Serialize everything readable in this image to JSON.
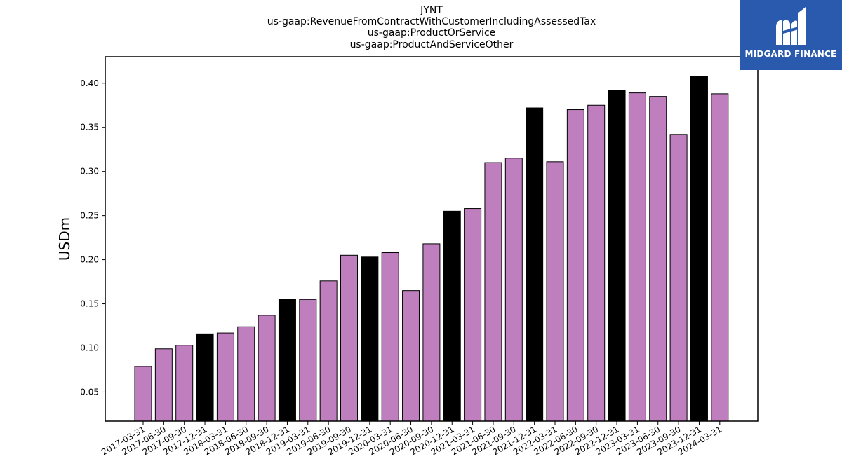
{
  "chart_data": {
    "type": "bar",
    "title": [
      "JYNT",
      "us-gaap:RevenueFromContractWithCustomerIncludingAssessedTax",
      "us-gaap:ProductOrService",
      "us-gaap:ProductAndServiceOther"
    ],
    "xlabel": "",
    "ylabel": "USDm",
    "ylim": [
      0.017,
      0.43
    ],
    "yticks": [
      0.05,
      0.1,
      0.15,
      0.2,
      0.25,
      0.3,
      0.35,
      0.4
    ],
    "ytick_labels": [
      "0.05",
      "0.10",
      "0.15",
      "0.20",
      "0.25",
      "0.30",
      "0.35",
      "0.40"
    ],
    "grid": false,
    "colors": {
      "quarter": "#bf7fbf",
      "year_end": "#000000",
      "edge": "#000000"
    },
    "categories": [
      "2017-03-31",
      "2017-06-30",
      "2017-09-30",
      "2017-12-31",
      "2018-03-31",
      "2018-06-30",
      "2018-09-30",
      "2018-12-31",
      "2019-03-31",
      "2019-06-30",
      "2019-09-30",
      "2019-12-31",
      "2020-03-31",
      "2020-06-30",
      "2020-09-30",
      "2020-12-31",
      "2021-03-31",
      "2021-06-30",
      "2021-09-30",
      "2021-12-31",
      "2022-03-31",
      "2022-06-30",
      "2022-09-30",
      "2022-12-31",
      "2023-03-31",
      "2023-06-30",
      "2023-09-30",
      "2023-12-31",
      "2024-03-31"
    ],
    "values": [
      0.079,
      0.099,
      0.103,
      0.116,
      0.117,
      0.124,
      0.137,
      0.155,
      0.155,
      0.176,
      0.205,
      0.203,
      0.208,
      0.165,
      0.218,
      0.255,
      0.258,
      0.31,
      0.315,
      0.372,
      0.311,
      0.37,
      0.375,
      0.392,
      0.389,
      0.385,
      0.342,
      0.408,
      0.388
    ],
    "year_end": [
      false,
      false,
      false,
      true,
      false,
      false,
      false,
      true,
      false,
      false,
      false,
      true,
      false,
      false,
      false,
      true,
      false,
      false,
      false,
      true,
      false,
      false,
      false,
      true,
      false,
      false,
      false,
      true,
      false
    ]
  },
  "logo": {
    "text": "MIDGARD FINANCE",
    "background": "#2a5aad"
  }
}
